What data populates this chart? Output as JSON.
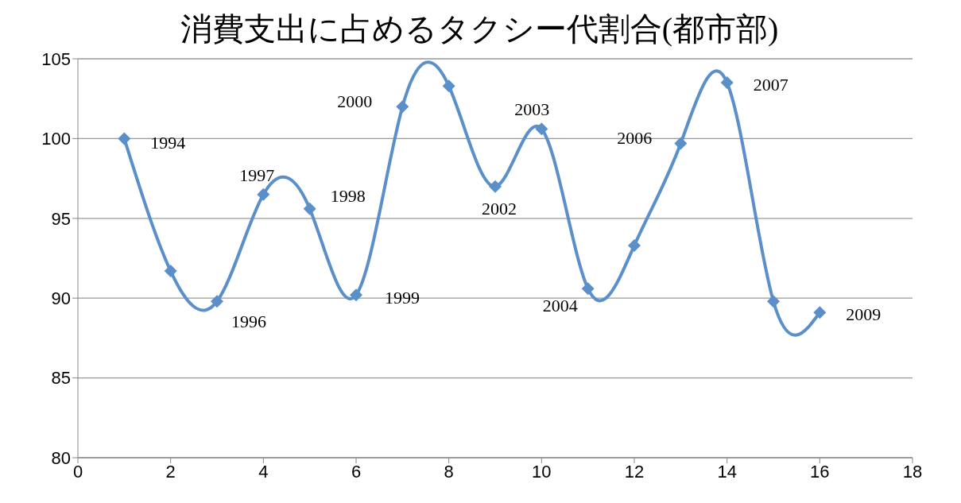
{
  "chart_data": {
    "type": "line",
    "title": "消費支出に占めるタクシー代割合(都市部)",
    "x": [
      1,
      2,
      3,
      4,
      5,
      6,
      7,
      8,
      9,
      10,
      11,
      12,
      13,
      14,
      15,
      16
    ],
    "series": [
      {
        "color": "#5b8fc9",
        "values": [
          100.0,
          91.7,
          89.8,
          96.5,
          95.6,
          90.2,
          102.0,
          103.3,
          97.0,
          100.6,
          90.6,
          93.3,
          99.7,
          103.5,
          89.8,
          89.1
        ]
      }
    ],
    "xlim": [
      0,
      18
    ],
    "xticks": [
      0,
      2,
      4,
      6,
      8,
      10,
      12,
      14,
      16,
      18
    ],
    "ylim": [
      80,
      105
    ],
    "yticks": [
      80,
      85,
      90,
      95,
      100,
      105
    ],
    "grid": "y",
    "marker": "diamond",
    "line_style": "solid",
    "legend": false,
    "annotations": [
      {
        "text": "1994",
        "x": 1,
        "y": 100.0
      },
      {
        "text": "1996",
        "x": 3,
        "y": 89.8
      },
      {
        "text": "1997",
        "x": 4,
        "y": 96.5
      },
      {
        "text": "1998",
        "x": 5,
        "y": 95.6
      },
      {
        "text": "1999",
        "x": 6,
        "y": 90.2
      },
      {
        "text": "2000",
        "x": 7,
        "y": 102.0
      },
      {
        "text": "2002",
        "x": 9,
        "y": 97.0
      },
      {
        "text": "2003",
        "x": 10,
        "y": 100.6
      },
      {
        "text": "2004",
        "x": 11,
        "y": 90.6
      },
      {
        "text": "2006",
        "x": 13,
        "y": 99.7
      },
      {
        "text": "2007",
        "x": 14,
        "y": 103.5
      },
      {
        "text": "2009",
        "x": 16,
        "y": 89.1
      }
    ]
  }
}
